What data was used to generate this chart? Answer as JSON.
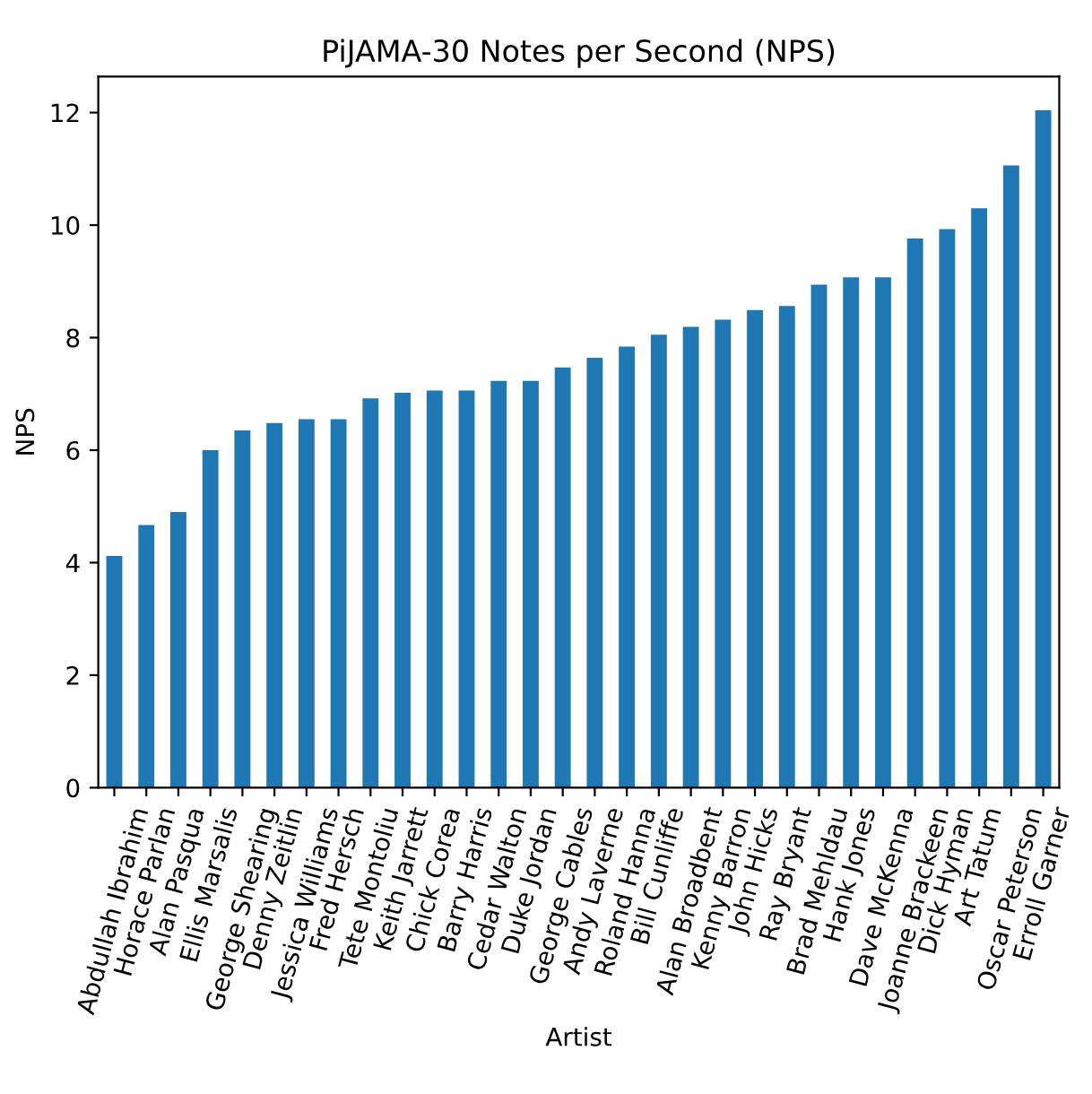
{
  "chart_data": {
    "type": "bar",
    "title": "PiJAMA-30 Notes per Second (NPS)",
    "xlabel": "Artist",
    "ylabel": "NPS",
    "categories": [
      "Abdullah Ibrahim",
      "Horace Parlan",
      "Alan Pasqua",
      "Ellis Marsalis",
      "George Shearing",
      "Denny Zeitlin",
      "Jessica Williams",
      "Fred Hersch",
      "Tete Montoliu",
      "Keith Jarrett",
      "Chick Corea",
      "Barry Harris",
      "Cedar Walton",
      "Duke Jordan",
      "George Cables",
      "Andy Laverne",
      "Roland Hanna",
      "Bill Cunliffe",
      "Alan Broadbent",
      "Kenny Barron",
      "John Hicks",
      "Ray Bryant",
      "Brad Mehldau",
      "Hank Jones",
      "Dave McKenna",
      "Joanne Brackeen",
      "Dick Hyman",
      "Art Tatum",
      "Oscar Peterson",
      "Erroll Garner"
    ],
    "values": [
      4.12,
      4.67,
      4.9,
      6.0,
      6.35,
      6.48,
      6.55,
      6.55,
      6.92,
      7.02,
      7.06,
      7.06,
      7.23,
      7.23,
      7.47,
      7.64,
      7.84,
      8.05,
      8.19,
      8.32,
      8.49,
      8.56,
      8.94,
      9.07,
      9.07,
      9.76,
      9.93,
      10.3,
      11.06,
      12.04
    ],
    "color": "#1f77b4",
    "ylim": [
      0,
      12.64
    ],
    "yticks": [
      0,
      2,
      4,
      6,
      8,
      10,
      12
    ],
    "grid": false,
    "legend": false
  }
}
